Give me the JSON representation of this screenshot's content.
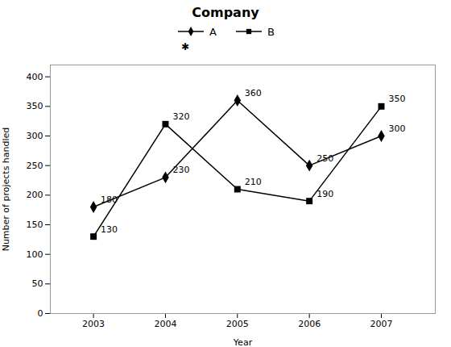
{
  "chart_data": {
    "type": "line",
    "title": "Company",
    "xlabel": "Year",
    "ylabel": "Number of projects handled",
    "x": [
      2003,
      2004,
      2005,
      2006,
      2007
    ],
    "series": [
      {
        "name": "A",
        "color": "#000000",
        "marker": "diamond",
        "values": [
          180,
          230,
          360,
          250,
          300
        ]
      },
      {
        "name": "B",
        "color": "#000000",
        "marker": "square",
        "values": [
          130,
          320,
          210,
          190,
          350
        ]
      }
    ],
    "xlim": [
      2002.4,
      2007.75
    ],
    "xticks": [
      2003,
      2004,
      2005,
      2006,
      2007
    ],
    "ylim": [
      0,
      420
    ],
    "yticks": [
      0,
      50,
      100,
      150,
      200,
      250,
      300,
      350,
      400
    ],
    "grid": false,
    "legend": "upper center",
    "data_labels": true,
    "annotations": [
      "✱"
    ]
  }
}
